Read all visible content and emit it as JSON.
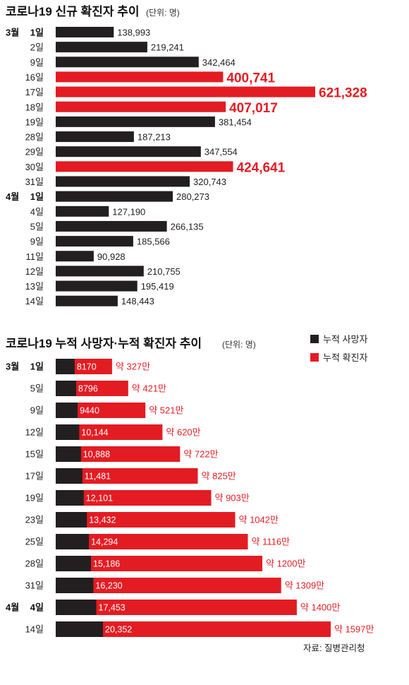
{
  "chart_data": [
    {
      "type": "bar",
      "orientation": "horizontal",
      "title": "코로나19 신규 확진자 추이",
      "unit_note": "(단위: 명)",
      "groups": [
        {
          "month": "3월",
          "start": 0
        },
        {
          "month": "4월",
          "start": 11
        }
      ],
      "categories": [
        "1일",
        "2일",
        "9일",
        "16일",
        "17일",
        "18일",
        "19일",
        "28일",
        "29일",
        "30일",
        "31일",
        "1일",
        "4일",
        "5일",
        "9일",
        "11일",
        "12일",
        "13일",
        "14일"
      ],
      "values": [
        138993,
        219241,
        342464,
        400741,
        621328,
        407017,
        381454,
        187213,
        347554,
        424641,
        320743,
        280273,
        127190,
        266135,
        185566,
        90928,
        210755,
        195419,
        148443
      ],
      "value_labels": [
        "138,993",
        "219,241",
        "342,464",
        "400,741",
        "621,328",
        "407,017",
        "381,454",
        "187,213",
        "347,554",
        "424,641",
        "320,743",
        "280,273",
        "127,190",
        "266,135",
        "185,566",
        "90,928",
        "210,755",
        "195,419",
        "148,443"
      ],
      "highlighted": [
        3,
        4,
        5,
        9
      ],
      "colors": {
        "normal": "#231f20",
        "highlight": "#e31c23",
        "highlight_text": "#e31c23"
      }
    },
    {
      "type": "bar",
      "orientation": "horizontal",
      "stacked": "overlay",
      "title": "코로나19 누적 사망자·누적 확진자 추이",
      "unit_note": "(단위: 명)",
      "groups": [
        {
          "month": "3월",
          "start": 0
        },
        {
          "month": "4월",
          "start": 11
        }
      ],
      "categories": [
        "1일",
        "5일",
        "9일",
        "12일",
        "15일",
        "17일",
        "19일",
        "23일",
        "25일",
        "28일",
        "31일",
        "4일",
        "14일"
      ],
      "series": [
        {
          "name": "누적 사망자",
          "color": "#231f20",
          "values": [
            8170,
            8796,
            9440,
            10144,
            10888,
            11481,
            12101,
            13432,
            14294,
            15186,
            16230,
            17453,
            20352
          ],
          "value_labels": [
            "8170",
            "8796",
            "9440",
            "10,144",
            "10,888",
            "11,481",
            "12,101",
            "13,432",
            "14,294",
            "15,186",
            "16,230",
            "17,453",
            "20,352"
          ]
        },
        {
          "name": "누적 확진자",
          "color": "#e31c23",
          "values": [
            3270000,
            4210000,
            5210000,
            6200000,
            7220000,
            8250000,
            9030000,
            10420000,
            11160000,
            12000000,
            13090000,
            14000000,
            15970000
          ],
          "value_labels": [
            "약 327만",
            "약 421만",
            "약 521만",
            "약 620만",
            "약 722만",
            "약 825만",
            "약 903만",
            "약 1042만",
            "약 1116만",
            "약 1200만",
            "약 1309만",
            "약 1400만",
            "약 1597만"
          ]
        }
      ],
      "legend_position": "top-right",
      "source": "자료: 질병관리청"
    }
  ]
}
